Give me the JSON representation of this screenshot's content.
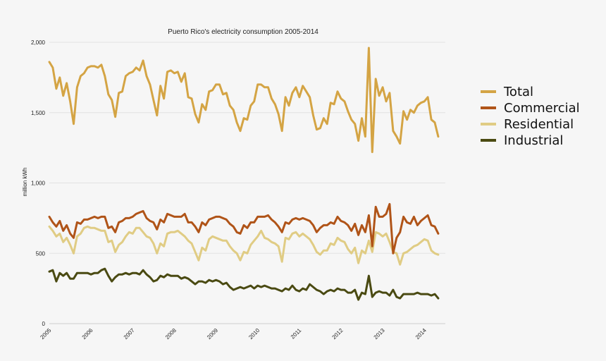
{
  "chart_data": {
    "type": "line",
    "title": "Puerto Rico's electricity consumption 2005-2014",
    "xlabel": "",
    "ylabel": "million kWh",
    "ylim": [
      0,
      2000
    ],
    "yticks": [
      0,
      500,
      1000,
      1500,
      2000
    ],
    "ytick_labels": [
      "0",
      "500",
      "1,000",
      "1,500",
      "2,000"
    ],
    "xticks": [
      2005,
      2006,
      2007,
      2008,
      2009,
      2010,
      2011,
      2012,
      2013,
      2014
    ],
    "xtick_labels": [
      "2005",
      "2006",
      "2007",
      "2008",
      "2009",
      "2010",
      "2011",
      "2012",
      "2013",
      "2014"
    ],
    "xlim": [
      2005,
      2014.5
    ],
    "x_start": 2005.0,
    "x_step": 0.0833,
    "grid": true,
    "legend_position": "right",
    "series": [
      {
        "name": "Total",
        "color": "#d4a444",
        "values": [
          1860,
          1820,
          1670,
          1750,
          1620,
          1710,
          1580,
          1420,
          1680,
          1760,
          1780,
          1820,
          1830,
          1830,
          1820,
          1840,
          1760,
          1630,
          1590,
          1470,
          1640,
          1650,
          1760,
          1780,
          1790,
          1820,
          1800,
          1870,
          1760,
          1700,
          1590,
          1480,
          1690,
          1600,
          1790,
          1800,
          1780,
          1790,
          1720,
          1780,
          1610,
          1600,
          1490,
          1430,
          1560,
          1520,
          1650,
          1660,
          1700,
          1700,
          1630,
          1640,
          1550,
          1520,
          1430,
          1370,
          1460,
          1450,
          1550,
          1580,
          1700,
          1700,
          1680,
          1680,
          1600,
          1560,
          1490,
          1370,
          1610,
          1550,
          1640,
          1680,
          1610,
          1690,
          1650,
          1610,
          1480,
          1380,
          1390,
          1460,
          1420,
          1570,
          1560,
          1650,
          1600,
          1580,
          1510,
          1450,
          1420,
          1300,
          1460,
          1330,
          1960,
          1220,
          1740,
          1620,
          1680,
          1580,
          1640,
          1370,
          1330,
          1280,
          1510,
          1450,
          1520,
          1500,
          1550,
          1570,
          1580,
          1610,
          1450,
          1430,
          1330
        ]
      },
      {
        "name": "Commercial",
        "color": "#b05418",
        "values": [
          760,
          720,
          690,
          730,
          660,
          700,
          640,
          610,
          720,
          710,
          740,
          740,
          750,
          760,
          750,
          760,
          760,
          680,
          690,
          650,
          720,
          730,
          750,
          750,
          760,
          780,
          790,
          800,
          750,
          730,
          720,
          670,
          740,
          720,
          780,
          770,
          760,
          760,
          760,
          780,
          720,
          720,
          690,
          650,
          720,
          700,
          740,
          750,
          760,
          760,
          750,
          740,
          710,
          690,
          650,
          640,
          700,
          680,
          720,
          720,
          760,
          760,
          760,
          770,
          740,
          720,
          690,
          650,
          720,
          710,
          740,
          750,
          740,
          750,
          740,
          730,
          700,
          650,
          680,
          700,
          700,
          720,
          710,
          760,
          730,
          720,
          700,
          660,
          710,
          630,
          700,
          650,
          770,
          550,
          830,
          760,
          760,
          780,
          850,
          500,
          610,
          650,
          760,
          720,
          710,
          760,
          700,
          730,
          750,
          770,
          700,
          690,
          640
        ]
      },
      {
        "name": "Residential",
        "color": "#e0cc84",
        "values": [
          690,
          660,
          620,
          640,
          580,
          610,
          560,
          500,
          620,
          640,
          680,
          690,
          680,
          680,
          670,
          660,
          660,
          580,
          590,
          510,
          560,
          580,
          620,
          650,
          640,
          680,
          680,
          650,
          620,
          610,
          570,
          500,
          570,
          550,
          640,
          650,
          650,
          660,
          640,
          620,
          590,
          570,
          510,
          450,
          540,
          520,
          600,
          620,
          610,
          600,
          590,
          590,
          550,
          520,
          500,
          450,
          510,
          500,
          560,
          590,
          620,
          660,
          610,
          600,
          580,
          570,
          550,
          440,
          610,
          600,
          640,
          650,
          620,
          640,
          620,
          600,
          560,
          510,
          490,
          520,
          520,
          570,
          560,
          610,
          590,
          580,
          530,
          500,
          540,
          430,
          520,
          500,
          590,
          510,
          650,
          640,
          620,
          640,
          580,
          510,
          500,
          420,
          500,
          510,
          530,
          550,
          560,
          580,
          600,
          590,
          520,
          500,
          490
        ]
      },
      {
        "name": "Industrial",
        "color": "#4a4a12",
        "values": [
          370,
          380,
          300,
          360,
          340,
          360,
          320,
          320,
          360,
          360,
          360,
          360,
          350,
          360,
          360,
          380,
          390,
          340,
          300,
          330,
          350,
          350,
          360,
          350,
          360,
          360,
          350,
          380,
          350,
          330,
          300,
          310,
          340,
          330,
          350,
          340,
          340,
          340,
          320,
          330,
          320,
          300,
          280,
          300,
          300,
          290,
          310,
          300,
          310,
          300,
          280,
          290,
          260,
          240,
          250,
          260,
          250,
          260,
          270,
          250,
          270,
          260,
          270,
          260,
          250,
          250,
          240,
          230,
          250,
          240,
          270,
          240,
          230,
          250,
          240,
          280,
          260,
          240,
          230,
          210,
          230,
          240,
          230,
          250,
          240,
          240,
          220,
          220,
          240,
          170,
          220,
          210,
          340,
          190,
          220,
          230,
          220,
          220,
          200,
          240,
          190,
          180,
          210,
          210,
          210,
          210,
          220,
          210,
          210,
          210,
          200,
          210,
          180
        ]
      }
    ]
  }
}
